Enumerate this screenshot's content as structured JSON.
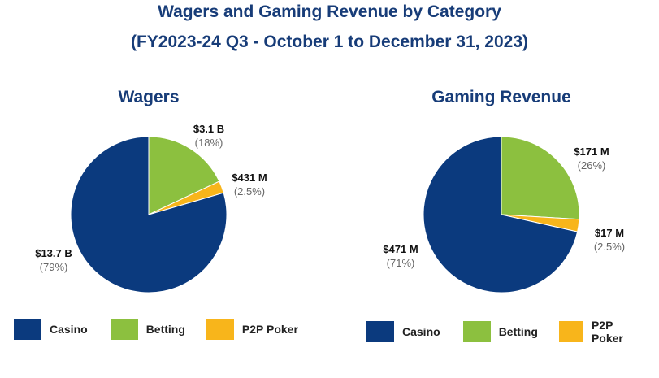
{
  "header": {
    "title_line1": "Wagers and Gaming Revenue by Category",
    "title_line2": "(FY2023-24 Q3 - October 1 to December 31, 2023)"
  },
  "colors": {
    "casino": "#0b3a7e",
    "betting": "#8cc03f",
    "p2p_poker": "#f8b51b"
  },
  "chart_data": [
    {
      "type": "pie",
      "title": "Wagers",
      "categories": [
        "Casino",
        "Betting",
        "P2P Poker"
      ],
      "values": [
        13.7,
        3.1,
        0.431
      ],
      "unit": "$B",
      "slices": [
        {
          "name": "Casino",
          "value_label": "$13.7 B",
          "percent": 79,
          "percent_label": "(79%)"
        },
        {
          "name": "Betting",
          "value_label": "$3.1 B",
          "percent": 18,
          "percent_label": "(18%)"
        },
        {
          "name": "P2P Poker",
          "value_label": "$431 M",
          "percent": 2.5,
          "percent_label": "(2.5%)"
        }
      ],
      "legend": [
        "Casino",
        "Betting",
        "P2P Poker"
      ]
    },
    {
      "type": "pie",
      "title": "Gaming Revenue",
      "categories": [
        "Casino",
        "Betting",
        "P2P Poker"
      ],
      "values": [
        471,
        171,
        17
      ],
      "unit": "$M",
      "slices": [
        {
          "name": "Casino",
          "value_label": "$471 M",
          "percent": 71,
          "percent_label": "(71%)"
        },
        {
          "name": "Betting",
          "value_label": "$171 M",
          "percent": 26,
          "percent_label": "(26%)"
        },
        {
          "name": "P2P Poker",
          "value_label": "$17 M",
          "percent": 2.5,
          "percent_label": "(2.5%)"
        }
      ],
      "legend": [
        "Casino",
        "Betting",
        "P2P Poker"
      ]
    }
  ]
}
